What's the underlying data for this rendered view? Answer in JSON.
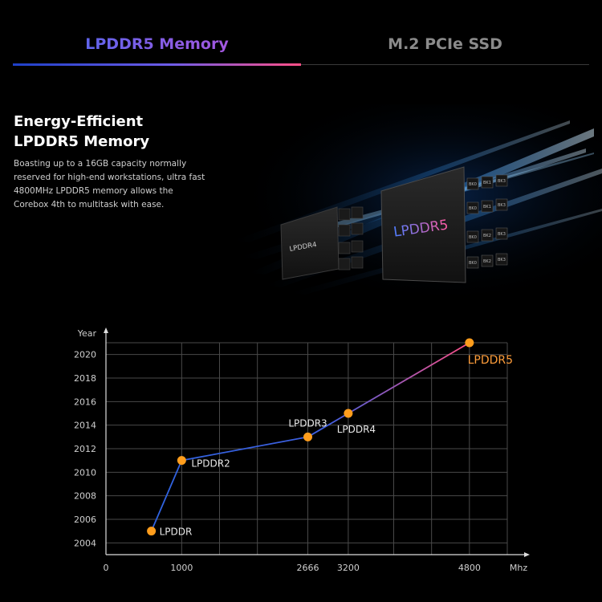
{
  "tabs": [
    {
      "label": "LPDDR5 Memory",
      "active": true
    },
    {
      "label": "M.2 PCIe SSD",
      "active": false
    }
  ],
  "hero": {
    "title_line1": "Energy-Efficient",
    "title_line2": "LPDDR5 Memory",
    "description": "Boasting up to a 16GB capacity normally reserved for high-end workstations, ultra fast 4800MHz LPDDR5 memory allows the Corebox 4th to multitask with ease."
  },
  "illustration": {
    "chip_small_label": "LPDDR4",
    "chip_large_label": "LPDDR5",
    "bank_labels": [
      "BK0",
      "BK1",
      "BK2",
      "BK3"
    ]
  },
  "chart_data": {
    "type": "line",
    "ylabel": "Year",
    "xlabel": "Mhz",
    "xlim": [
      0,
      5300
    ],
    "ylim": [
      2003,
      2021
    ],
    "x_ticks": [
      0,
      1000,
      2666,
      3200,
      4800
    ],
    "y_ticks": [
      2004,
      2006,
      2008,
      2010,
      2012,
      2014,
      2016,
      2018,
      2020
    ],
    "grid": true,
    "series": [
      {
        "points": [
          {
            "label": "LPDDR",
            "x": 600,
            "y": 2005
          },
          {
            "label": "LPDDR2",
            "x": 1000,
            "y": 2011
          },
          {
            "label": "LPDDR3",
            "x": 2666,
            "y": 2013
          },
          {
            "label": "LPDDR4",
            "x": 3200,
            "y": 2015
          },
          {
            "label": "LPDDR5",
            "x": 4800,
            "y": 2021
          }
        ]
      }
    ],
    "colors": {
      "line_start": "#2f63e0",
      "line_end": "#ff4f86",
      "point": "#ff9d1c",
      "highlight_label": "#ff9d3a",
      "grid": "#4a4a4a"
    }
  }
}
